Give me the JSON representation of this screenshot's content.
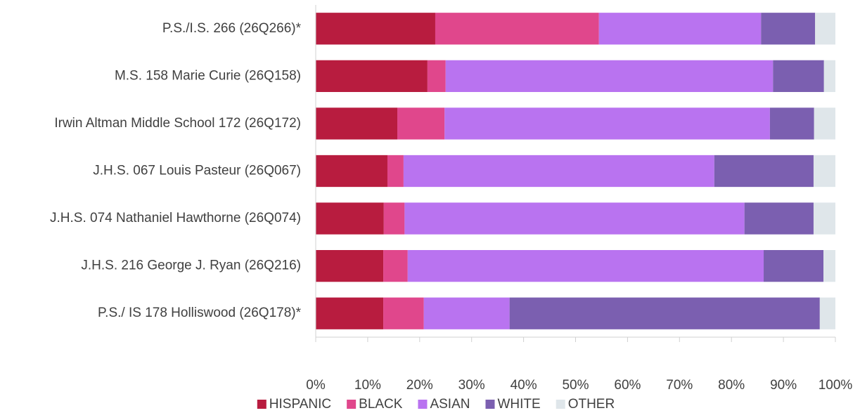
{
  "chart_data": {
    "type": "stacked-bar-horizontal",
    "categories": [
      "P.S./I.S. 266 (26Q266)*",
      "M.S. 158 Marie Curie (26Q158)",
      "Irwin Altman Middle School 172 (26Q172)",
      "J.H.S. 067 Louis Pasteur (26Q067)",
      "J.H.S. 074 Nathaniel Hawthorne (26Q074)",
      "J.H.S. 216 George J. Ryan (26Q216)",
      "P.S./ IS 178 Holliswood (26Q178)*"
    ],
    "series": [
      {
        "name": "HISPANIC",
        "color": "#b81c3f",
        "values": [
          23,
          21.5,
          15.7,
          13.8,
          13.1,
          13,
          13
        ]
      },
      {
        "name": "BLACK",
        "color": "#e0478c",
        "values": [
          31.5,
          3.5,
          9.1,
          3.1,
          4,
          4.7,
          7.8
        ]
      },
      {
        "name": "ASIAN",
        "color": "#b973f0",
        "values": [
          31.2,
          63,
          62.6,
          59.8,
          65.4,
          68.5,
          16.5
        ]
      },
      {
        "name": "WHITE",
        "color": "#7b5fb0",
        "values": [
          10.4,
          9.8,
          8.5,
          19.1,
          13.3,
          11.5,
          59.7
        ]
      },
      {
        "name": "OTHER",
        "color": "#dfe6ea",
        "values": [
          3.9,
          2.2,
          4.1,
          4.2,
          4.2,
          2.3,
          3
        ]
      }
    ],
    "xlim": [
      0,
      100
    ],
    "xticks": [
      {
        "value": 0,
        "label": "0%"
      },
      {
        "value": 10,
        "label": "10%"
      },
      {
        "value": 20,
        "label": "20%"
      },
      {
        "value": 30,
        "label": "30%"
      },
      {
        "value": 40,
        "label": "40%"
      },
      {
        "value": 50,
        "label": "50%"
      },
      {
        "value": 60,
        "label": "60%"
      },
      {
        "value": 70,
        "label": "70%"
      },
      {
        "value": 80,
        "label": "80%"
      },
      {
        "value": 90,
        "label": "90%"
      },
      {
        "value": 100,
        "label": "100%"
      }
    ],
    "legend": "bottom"
  }
}
